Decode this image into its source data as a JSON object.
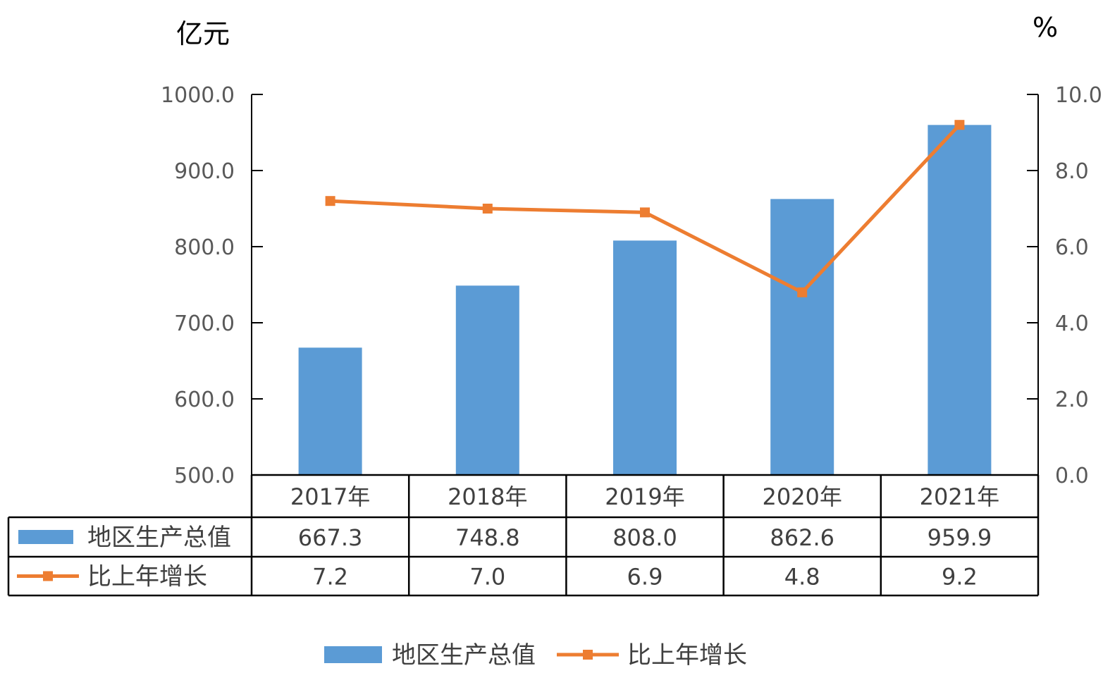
{
  "chart_data": {
    "type": "bar",
    "categories": [
      "2017年",
      "2018年",
      "2019年",
      "2020年",
      "2021年"
    ],
    "y_left_unit": "亿元",
    "y_right_unit": "%",
    "ylim_left": [
      500,
      1000
    ],
    "ylim_right": [
      0,
      10
    ],
    "y_left_ticks": [
      "500.0",
      "600.0",
      "700.0",
      "800.0",
      "900.0",
      "1000.0"
    ],
    "y_right_ticks": [
      "0.0",
      "2.0",
      "4.0",
      "6.0",
      "8.0",
      "10.0"
    ],
    "grid": false,
    "data_table": true,
    "legend_position": "bottom",
    "series": [
      {
        "name": "地区生产总值",
        "type": "bar",
        "axis": "left",
        "color": "#5B9BD5",
        "values": [
          667.3,
          748.8,
          808.0,
          862.6,
          959.9
        ],
        "labels": [
          "667.3",
          "748.8",
          "808.0",
          "862.6",
          "959.9"
        ]
      },
      {
        "name": "比上年增长",
        "type": "line",
        "axis": "right",
        "color": "#ED7D31",
        "marker": "square",
        "values": [
          7.2,
          7.0,
          6.9,
          4.8,
          9.2
        ],
        "labels": [
          "7.2",
          "7.0",
          "6.9",
          "4.8",
          "9.2"
        ]
      }
    ]
  }
}
